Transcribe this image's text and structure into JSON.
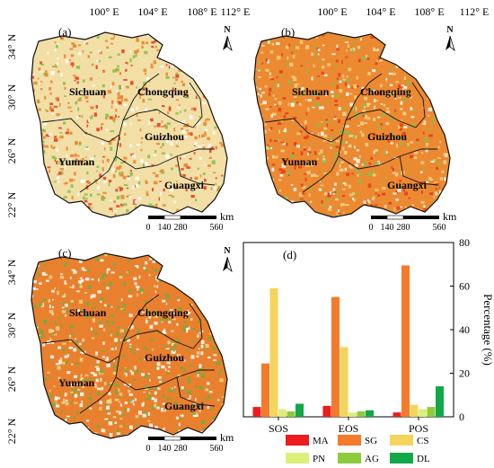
{
  "lon_ticks": [
    "100° E",
    "104° E",
    "108° E",
    "112° E"
  ],
  "lat_ticks": [
    "34° N",
    "30° N",
    "26° N",
    "22° N"
  ],
  "north_label": "N",
  "scale_bar": {
    "labels": [
      "0",
      "140",
      "280",
      "560"
    ],
    "unit": "km"
  },
  "provinces": [
    "Sichuan",
    "Chongqing",
    "Guizhou",
    "Yunnan",
    "Guangxi"
  ],
  "panels": [
    {
      "tag": "(a)",
      "dominant": "mixed",
      "colors": {
        "base": "#f2dfa6",
        "accent1": "#e9822b",
        "accent2": "#7fc24a",
        "accent3": "#e43b1a"
      }
    },
    {
      "tag": "(b)",
      "dominant": "SG",
      "colors": {
        "base": "#ec8a32",
        "accent1": "#f2d38a",
        "accent2": "#e43b1a",
        "accent3": "#7fc24a"
      }
    },
    {
      "tag": "(c)",
      "dominant": "SG",
      "colors": {
        "base": "#e9802e",
        "accent1": "#6fae3b",
        "accent2": "#f2d38a",
        "accent3": "#ffffff"
      }
    }
  ],
  "chart_data": {
    "type": "bar",
    "tag": "(d)",
    "categories": [
      "SOS",
      "EOS",
      "POS"
    ],
    "ylabel": "Percentage (%)",
    "ylim": [
      0,
      80
    ],
    "yticks": [
      0,
      20,
      40,
      60,
      80
    ],
    "series": [
      {
        "name": "MA",
        "color": "#ee1c1c",
        "values": [
          4.5,
          5.0,
          2.0
        ]
      },
      {
        "name": "SG",
        "color": "#f47a2c",
        "values": [
          24.5,
          55.0,
          69.5
        ]
      },
      {
        "name": "CS",
        "color": "#f5d45c",
        "values": [
          59.0,
          32.0,
          5.5
        ]
      },
      {
        "name": "PN",
        "color": "#dcef7a",
        "values": [
          3.5,
          2.0,
          3.5
        ]
      },
      {
        "name": "AG",
        "color": "#8ccc3c",
        "values": [
          2.5,
          2.5,
          4.5
        ]
      },
      {
        "name": "DL",
        "color": "#12a84a",
        "values": [
          6.0,
          3.0,
          14.0
        ]
      }
    ]
  }
}
